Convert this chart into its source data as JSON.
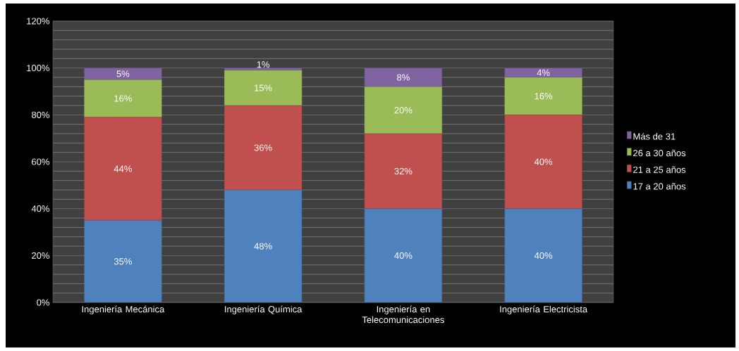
{
  "chart_data": {
    "type": "bar",
    "stacked": true,
    "categories": [
      "Ingeniería Mecánica",
      "Ingeniería Química",
      "Ingeniería en Telecomunicaciones",
      "Ingeniería Electricista"
    ],
    "series": [
      {
        "name": "17 a 20 años",
        "color": "#4f81bd",
        "values": [
          35,
          48,
          40,
          40
        ],
        "value_labels": [
          "35%",
          "48%",
          "40%",
          "40%"
        ]
      },
      {
        "name": "21 a 25 años",
        "color": "#c0504d",
        "values": [
          44,
          36,
          32,
          40
        ],
        "value_labels": [
          "44%",
          "36%",
          "32%",
          "40%"
        ]
      },
      {
        "name": "26 a 30 años",
        "color": "#9bbb59",
        "values": [
          16,
          15,
          20,
          16
        ],
        "value_labels": [
          "16%",
          "15%",
          "20%",
          "16%"
        ]
      },
      {
        "name": "Más de 31",
        "color": "#8064a2",
        "values": [
          5,
          1,
          8,
          4
        ],
        "value_labels": [
          "5%",
          "1%",
          "8%",
          "4%"
        ]
      }
    ],
    "ylim": [
      0,
      120
    ],
    "yticks": [
      {
        "value": 0,
        "label": "0%"
      },
      {
        "value": 20,
        "label": "20%"
      },
      {
        "value": 40,
        "label": "40%"
      },
      {
        "value": 60,
        "label": "60%"
      },
      {
        "value": 80,
        "label": "80%"
      },
      {
        "value": 100,
        "label": "100%"
      },
      {
        "value": 120,
        "label": "120%"
      }
    ],
    "grid": "y",
    "legend": "right"
  }
}
